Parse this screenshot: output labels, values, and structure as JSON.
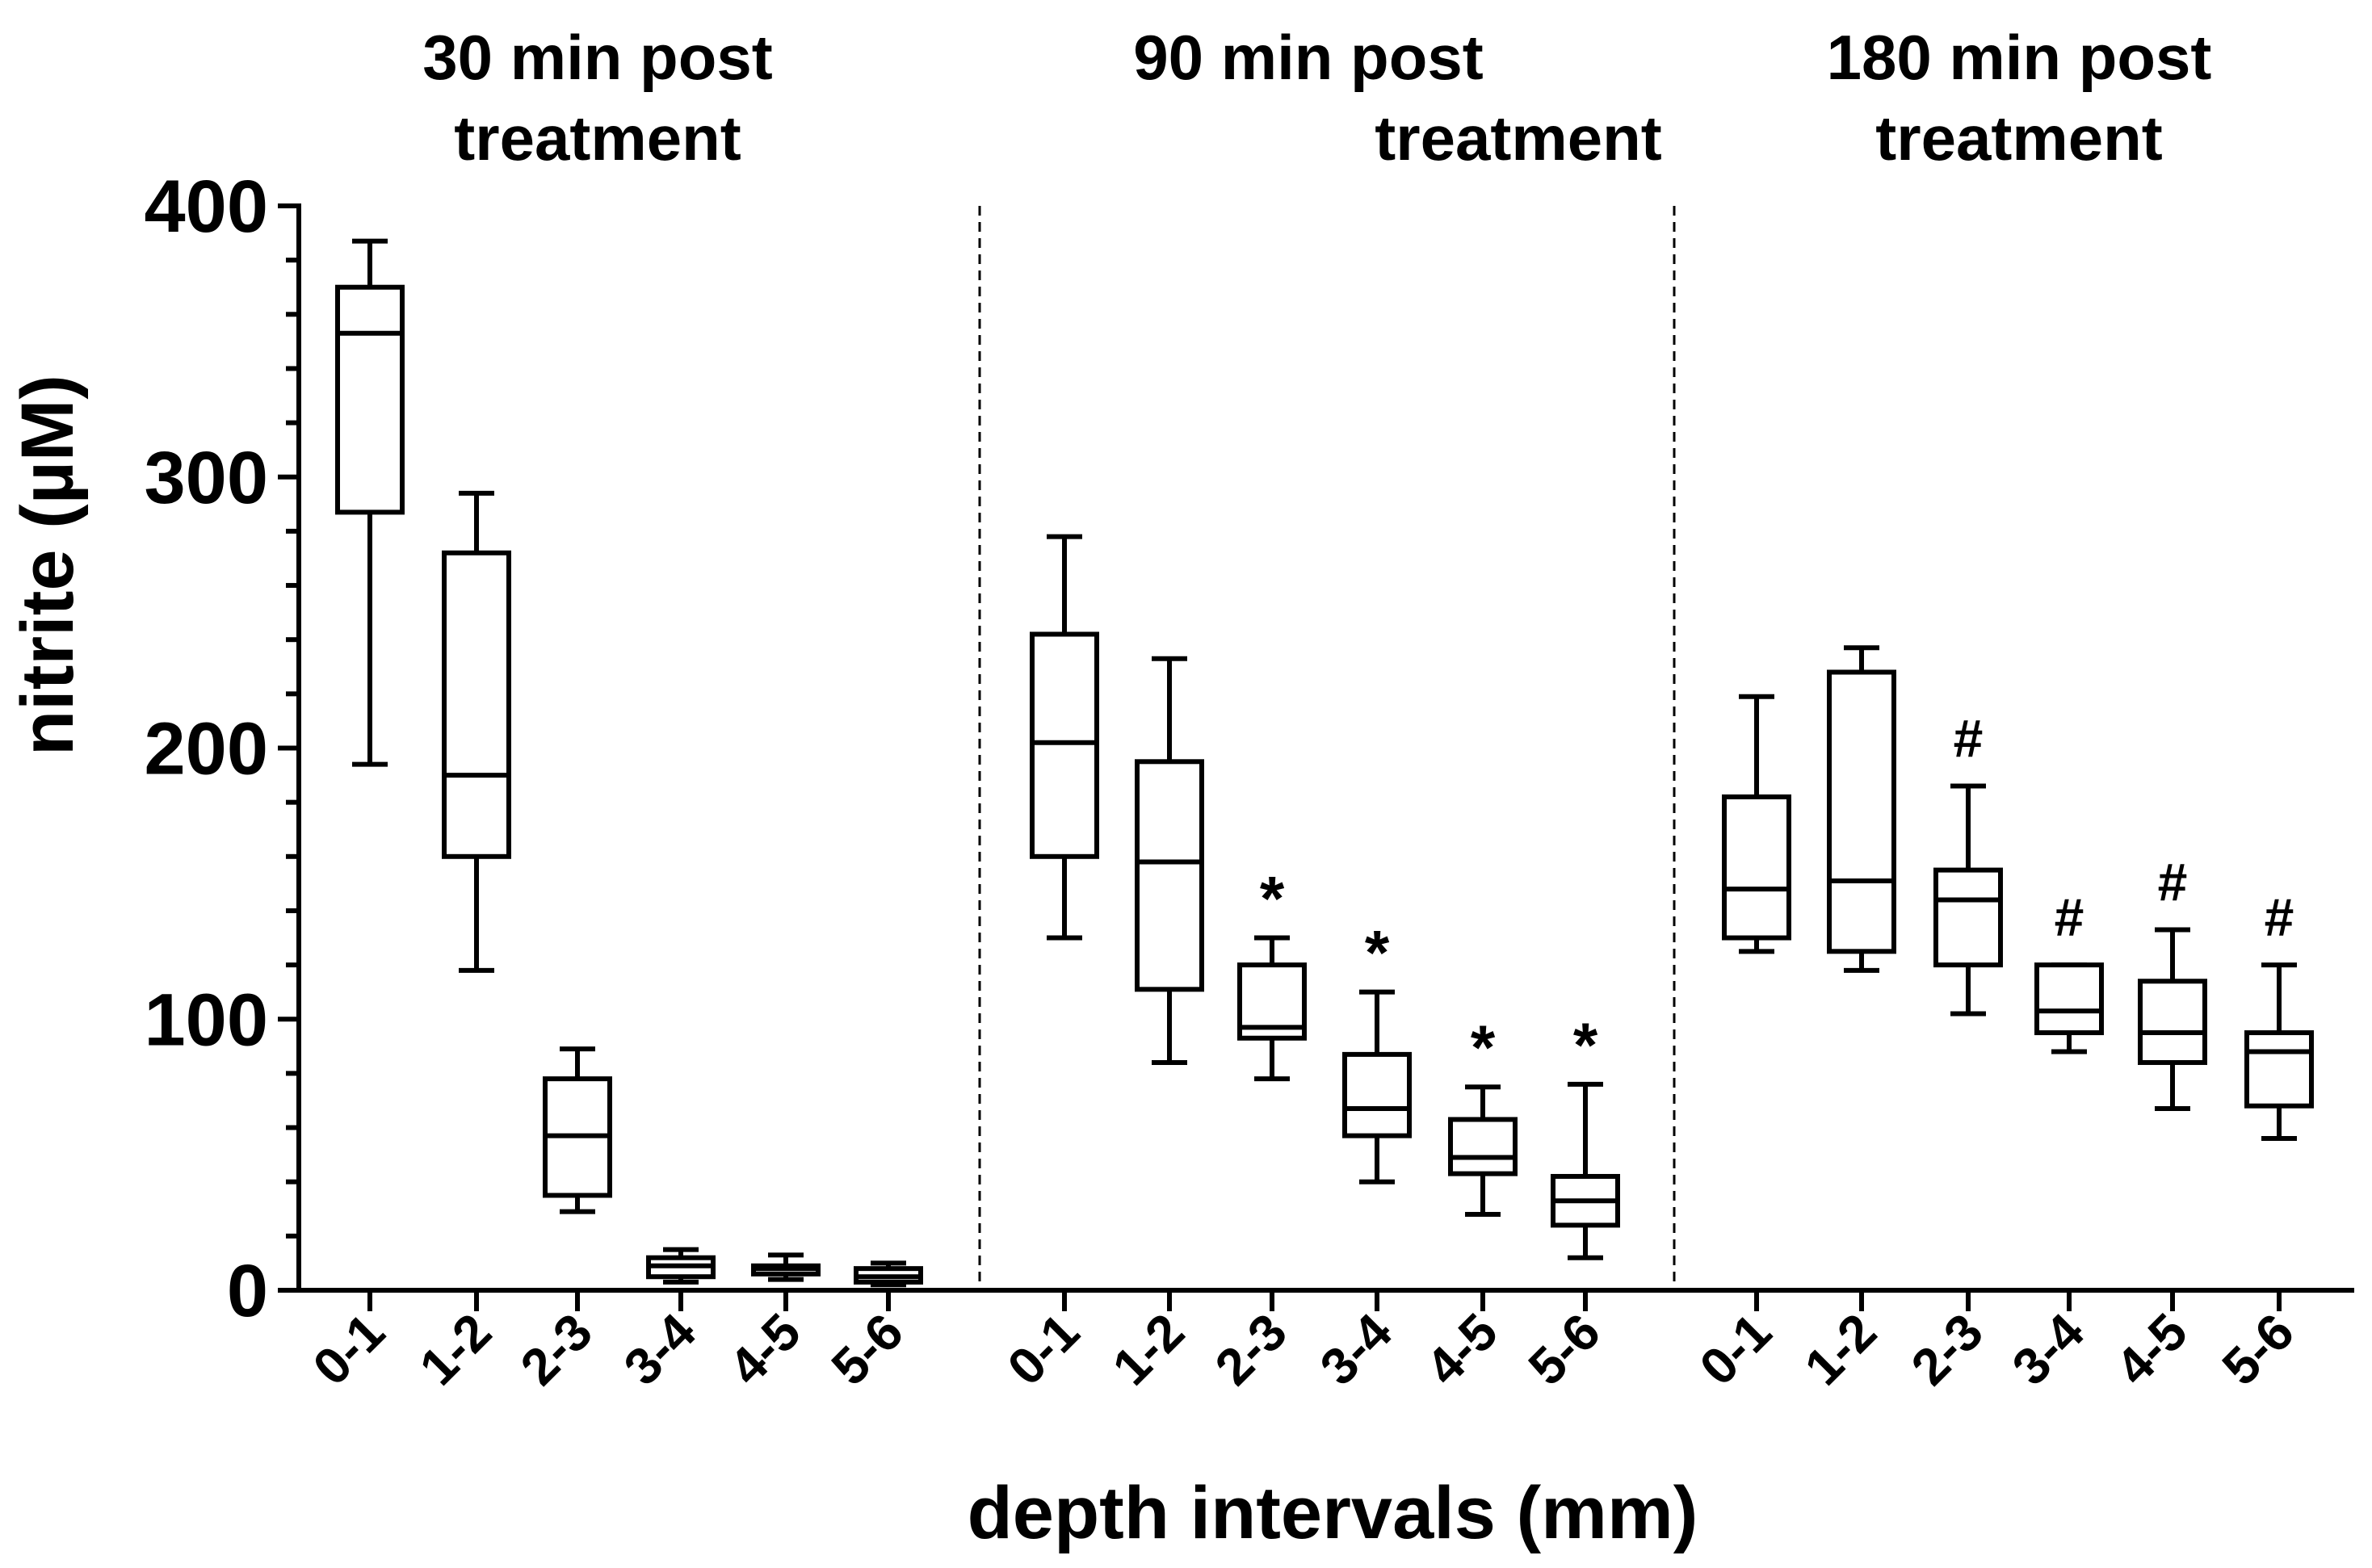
{
  "chart_data": {
    "type": "box",
    "ylabel": "nitrite (µM)",
    "xlabel": "depth intervals (mm)",
    "ylim": [
      0,
      400
    ],
    "yticks": [
      0,
      100,
      200,
      300,
      400
    ],
    "categories": [
      "0-1",
      "1-2",
      "2-3",
      "3-4",
      "4-5",
      "5-6"
    ],
    "grid": false,
    "panels": [
      {
        "title": [
          "30 min post",
          "treatment"
        ],
        "boxes": [
          {
            "cat": "0-1",
            "min": 194,
            "q1": 287,
            "median": 353,
            "q3": 370,
            "max": 387,
            "annotation": ""
          },
          {
            "cat": "1-2",
            "min": 118,
            "q1": 160,
            "median": 190,
            "q3": 272,
            "max": 294,
            "annotation": ""
          },
          {
            "cat": "2-3",
            "min": 29,
            "q1": 35,
            "median": 57,
            "q3": 78,
            "max": 89,
            "annotation": ""
          },
          {
            "cat": "3-4",
            "min": 3,
            "q1": 5,
            "median": 9,
            "q3": 12,
            "max": 15,
            "annotation": ""
          },
          {
            "cat": "4-5",
            "min": 4,
            "q1": 6,
            "median": 8,
            "q3": 9,
            "max": 13,
            "annotation": ""
          },
          {
            "cat": "5-6",
            "min": 2,
            "q1": 3,
            "median": 5,
            "q3": 8,
            "max": 10,
            "annotation": ""
          }
        ]
      },
      {
        "title": [
          "90 min post",
          "treatment"
        ],
        "boxes": [
          {
            "cat": "0-1",
            "min": 130,
            "q1": 160,
            "median": 202,
            "q3": 242,
            "max": 278,
            "annotation": ""
          },
          {
            "cat": "1-2",
            "min": 84,
            "q1": 111,
            "median": 158,
            "q3": 195,
            "max": 233,
            "annotation": ""
          },
          {
            "cat": "2-3",
            "min": 78,
            "q1": 93,
            "median": 97,
            "q3": 120,
            "max": 130,
            "annotation": "*"
          },
          {
            "cat": "3-4",
            "min": 40,
            "q1": 57,
            "median": 67,
            "q3": 87,
            "max": 110,
            "annotation": "*"
          },
          {
            "cat": "4-5",
            "min": 28,
            "q1": 43,
            "median": 49,
            "q3": 63,
            "max": 75,
            "annotation": "*"
          },
          {
            "cat": "5-6",
            "min": 12,
            "q1": 24,
            "median": 33,
            "q3": 42,
            "max": 76,
            "annotation": "*"
          }
        ]
      },
      {
        "title": [
          "180 min post",
          "treatment"
        ],
        "boxes": [
          {
            "cat": "0-1",
            "min": 125,
            "q1": 130,
            "median": 148,
            "q3": 182,
            "max": 219,
            "annotation": ""
          },
          {
            "cat": "1-2",
            "min": 118,
            "q1": 125,
            "median": 151,
            "q3": 228,
            "max": 237,
            "annotation": ""
          },
          {
            "cat": "2-3",
            "min": 102,
            "q1": 120,
            "median": 144,
            "q3": 155,
            "max": 186,
            "annotation": "#"
          },
          {
            "cat": "3-4",
            "min": 88,
            "q1": 95,
            "median": 103,
            "q3": 120,
            "max": 120,
            "annotation": "#"
          },
          {
            "cat": "4-5",
            "min": 67,
            "q1": 84,
            "median": 95,
            "q3": 114,
            "max": 133,
            "annotation": "#"
          },
          {
            "cat": "5-6",
            "min": 56,
            "q1": 68,
            "median": 88,
            "q3": 95,
            "max": 120,
            "annotation": "#"
          }
        ]
      }
    ]
  }
}
